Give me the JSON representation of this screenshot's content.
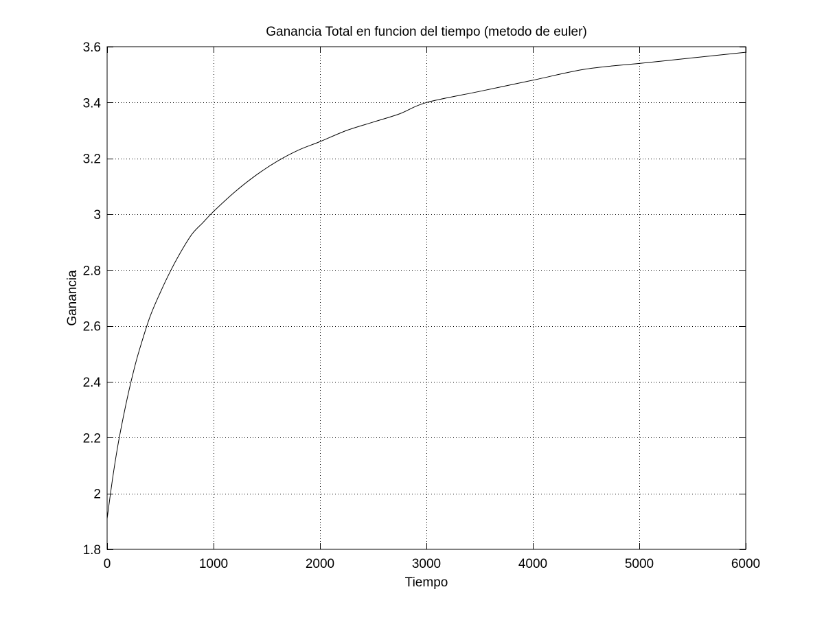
{
  "chart_data": {
    "type": "line",
    "title": "Ganancia Total en funcion del tiempo (metodo de euler)",
    "xlabel": "Tiempo",
    "ylabel": "Ganancia",
    "xlim": [
      0,
      6000
    ],
    "ylim": [
      1.8,
      3.6
    ],
    "grid": true,
    "xticks": [
      0,
      1000,
      2000,
      3000,
      4000,
      5000,
      6000
    ],
    "xtick_labels": [
      "0",
      "1000",
      "2000",
      "3000",
      "4000",
      "5000",
      "6000"
    ],
    "yticks": [
      1.8,
      2.0,
      2.2,
      2.4,
      2.6,
      2.8,
      3.0,
      3.2,
      3.4,
      3.6
    ],
    "ytick_labels": [
      "1.8",
      "2",
      "2.2",
      "2.4",
      "2.6",
      "2.8",
      "3",
      "3.2",
      "3.4",
      "3.6"
    ],
    "series": [
      {
        "color": "#000000",
        "x": [
          0,
          50,
          100,
          150,
          200,
          250,
          300,
          400,
          500,
          600,
          700,
          800,
          900,
          1000,
          1200,
          1400,
          1600,
          1800,
          2000,
          2250,
          2500,
          2750,
          3000,
          3500,
          4000,
          4500,
          5000,
          5500,
          6000
        ],
        "y": [
          1.91,
          2.05,
          2.17,
          2.27,
          2.36,
          2.44,
          2.51,
          2.63,
          2.72,
          2.8,
          2.87,
          2.93,
          2.97,
          3.01,
          3.08,
          3.14,
          3.19,
          3.23,
          3.26,
          3.3,
          3.33,
          3.36,
          3.4,
          3.44,
          3.48,
          3.52,
          3.54,
          3.56,
          3.58
        ]
      }
    ]
  }
}
